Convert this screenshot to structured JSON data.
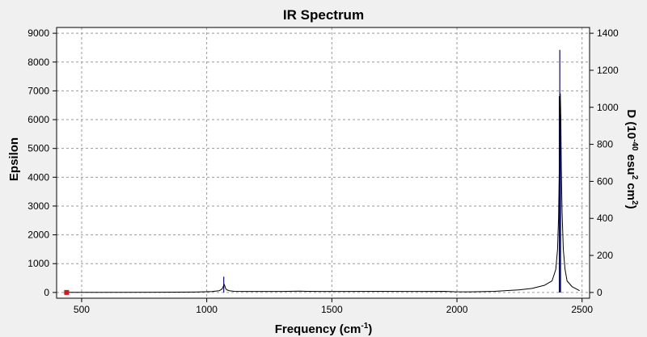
{
  "chart_data": {
    "type": "line",
    "title": "IR Spectrum",
    "xlabel": "Frequency (cm",
    "xlabel_sup": "-1",
    "xlabel_tail": ")",
    "ylabel": "Epsilon",
    "y2label_parts": [
      "D (10",
      "-40",
      " esu",
      "2",
      " cm",
      "2",
      ")"
    ],
    "xlim": [
      400,
      2530
    ],
    "ylim": [
      -200,
      9200
    ],
    "y2lim": [
      -31.1,
      1431.1
    ],
    "x_ticks": [
      500,
      1000,
      1500,
      2000,
      2500
    ],
    "y_ticks": [
      0,
      1000,
      2000,
      3000,
      4000,
      5000,
      6000,
      7000,
      8000,
      9000
    ],
    "y2_ticks": [
      0,
      200,
      400,
      600,
      800,
      1000,
      1200,
      1400
    ],
    "grid": true,
    "colors": {
      "spectrum": "#000000",
      "stick": "#0a0a8a",
      "marker": "#d11a1a",
      "grid": "#9a9a9a",
      "plot_bg": "#ffffff",
      "frame_bg": "#f0f0f0"
    },
    "series": [
      {
        "x": [
          430,
          600,
          800,
          950,
          1020,
          1050,
          1060,
          1065,
          1068,
          1070,
          1072,
          1075,
          1080,
          1090,
          1110,
          1150,
          1200,
          1300,
          1370,
          1400,
          1450,
          1550,
          1700,
          1850,
          1950,
          1990,
          2050,
          2150,
          2250,
          2300,
          2350,
          2380,
          2395,
          2402,
          2406,
          2409,
          2411,
          2413,
          2415,
          2417,
          2420,
          2425,
          2432,
          2440,
          2460,
          2490
        ],
        "y": [
          5,
          5,
          8,
          15,
          30,
          60,
          110,
          180,
          250,
          280,
          230,
          150,
          90,
          60,
          40,
          35,
          35,
          35,
          45,
          40,
          35,
          35,
          40,
          35,
          40,
          25,
          20,
          40,
          90,
          140,
          250,
          400,
          800,
          1500,
          2600,
          4300,
          6200,
          6900,
          6100,
          4300,
          2800,
          1500,
          800,
          400,
          200,
          60
        ]
      }
    ],
    "sticks": [
      {
        "x": 1068,
        "y": 85
      },
      {
        "x": 2409,
        "y": 1060
      },
      {
        "x": 2411,
        "y": 1310
      },
      {
        "x": 2414,
        "y": 960
      }
    ],
    "marker_points": [
      {
        "x": 440,
        "y": 0
      }
    ]
  }
}
